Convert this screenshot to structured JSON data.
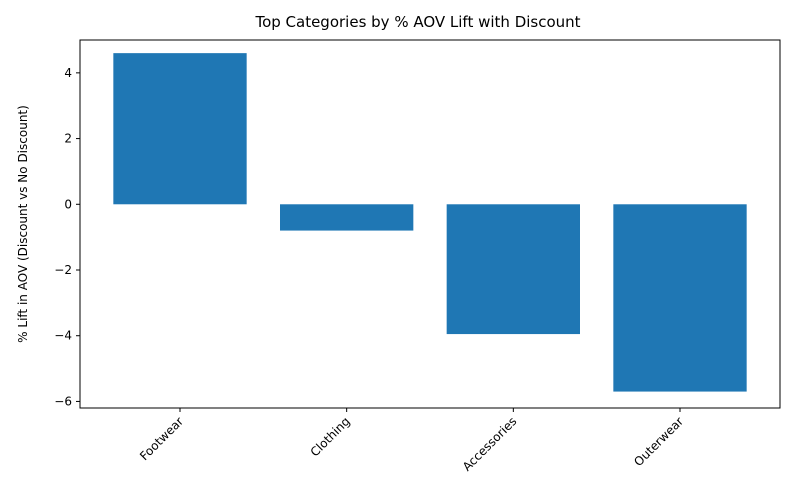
{
  "chart_data": {
    "type": "bar",
    "title": "Top Categories by % AOV Lift with Discount",
    "xlabel": "",
    "ylabel": "% Lift in AOV (Discount vs No Discount)",
    "categories": [
      "Footwear",
      "Clothing",
      "Accessories",
      "Outerwear"
    ],
    "values": [
      4.6,
      -0.8,
      -3.95,
      -5.7
    ],
    "ylim": [
      -6.2,
      5.0
    ],
    "yticks": [
      -6,
      -4,
      -2,
      0,
      2,
      4
    ],
    "bar_color": "#1f77b4",
    "grid": false,
    "legend": "none"
  }
}
